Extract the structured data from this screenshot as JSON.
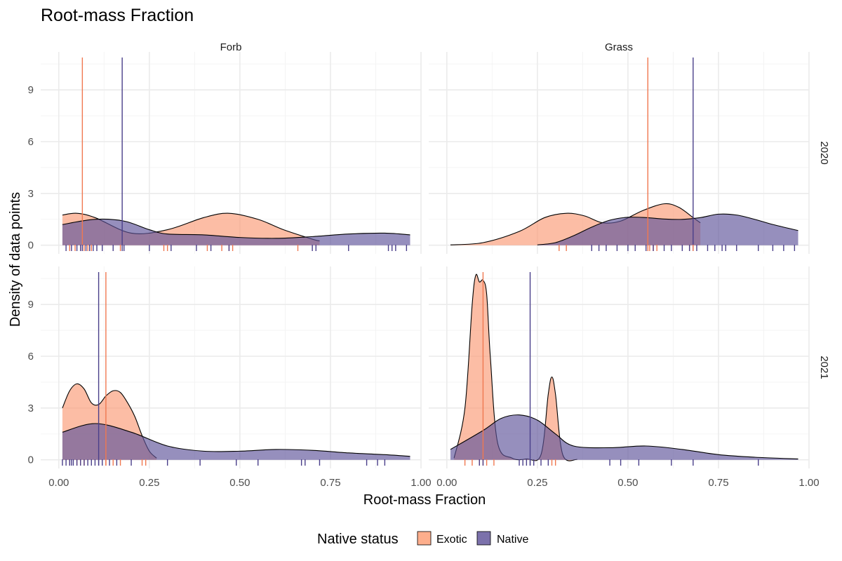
{
  "chart_data": {
    "type": "area",
    "subtype": "density with rug and mean lines, faceted",
    "title": "Root-mass Fraction",
    "xlabel": "Root-mass Fraction",
    "ylabel": "Density of data points",
    "xlim": [
      -0.05,
      1.0
    ],
    "ylim": [
      -0.5,
      11.2
    ],
    "x_ticks": [
      0,
      0.25,
      0.5,
      0.75,
      1.0
    ],
    "x_tick_labels": [
      "0.00",
      "0.25",
      "0.50",
      "0.75",
      "1.00"
    ],
    "y_ticks": [
      0,
      3,
      6,
      9
    ],
    "y_tick_labels": [
      "0",
      "3",
      "6",
      "9"
    ],
    "grid": true,
    "col_facets": [
      "Forb",
      "Grass"
    ],
    "row_facets": [
      "2020",
      "2021"
    ],
    "legend": {
      "title": "Native status",
      "position": "bottom",
      "entries": [
        {
          "label": "Exotic",
          "color": "#fdae8c"
        },
        {
          "label": "Native",
          "color": "#7b71ab"
        }
      ]
    },
    "colors": {
      "Exotic_fill": "#fb9a74",
      "Exotic_line": "#f07850",
      "Native_fill": "#5e5399",
      "Native_line": "#4a3f8a",
      "outline": "#000000"
    },
    "panels": [
      {
        "col": "Forb",
        "row": "2020",
        "series": [
          {
            "name": "Exotic",
            "mean": 0.065,
            "x": [
              0.01,
              0.05,
              0.1,
              0.2,
              0.3,
              0.4,
              0.47,
              0.55,
              0.62,
              0.7,
              0.72
            ],
            "y": [
              1.75,
              1.85,
              1.6,
              0.7,
              0.9,
              1.6,
              1.85,
              1.5,
              0.9,
              0.35,
              0.25
            ]
          },
          {
            "name": "Native",
            "mean": 0.175,
            "x": [
              0.01,
              0.1,
              0.18,
              0.25,
              0.3,
              0.4,
              0.5,
              0.6,
              0.7,
              0.8,
              0.9,
              0.97
            ],
            "y": [
              1.2,
              1.5,
              1.4,
              0.9,
              0.65,
              0.6,
              0.45,
              0.4,
              0.5,
              0.65,
              0.7,
              0.6
            ]
          }
        ],
        "rug": {
          "Exotic": [
            0.03,
            0.045,
            0.06,
            0.07,
            0.08,
            0.09,
            0.17,
            0.29,
            0.3,
            0.41,
            0.45,
            0.47,
            0.48,
            0.66
          ],
          "Native": [
            0.02,
            0.035,
            0.05,
            0.06,
            0.065,
            0.075,
            0.085,
            0.095,
            0.105,
            0.12,
            0.15,
            0.18,
            0.25,
            0.31,
            0.38,
            0.42,
            0.47,
            0.7,
            0.71,
            0.8,
            0.91,
            0.92,
            0.93,
            0.96
          ]
        }
      },
      {
        "col": "Grass",
        "row": "2020",
        "series": [
          {
            "name": "Exotic",
            "mean": 0.555,
            "x": [
              0.01,
              0.1,
              0.2,
              0.27,
              0.33,
              0.38,
              0.43,
              0.48,
              0.54,
              0.6,
              0.64,
              0.68,
              0.7
            ],
            "y": [
              0.02,
              0.15,
              0.8,
              1.6,
              1.85,
              1.7,
              1.3,
              1.4,
              2.0,
              2.4,
              2.2,
              1.6,
              1.3
            ]
          },
          {
            "name": "Native",
            "mean": 0.68,
            "x": [
              0.25,
              0.3,
              0.35,
              0.4,
              0.45,
              0.5,
              0.55,
              0.6,
              0.65,
              0.7,
              0.75,
              0.8,
              0.85,
              0.9,
              0.97
            ],
            "y": [
              0.02,
              0.15,
              0.55,
              1.05,
              1.45,
              1.62,
              1.6,
              1.52,
              1.5,
              1.6,
              1.8,
              1.75,
              1.5,
              1.2,
              0.85
            ]
          }
        ],
        "rug": {
          "Exotic": [
            0.31,
            0.33,
            0.56,
            0.57,
            0.58,
            0.67,
            0.68
          ],
          "Native": [
            0.4,
            0.42,
            0.44,
            0.47,
            0.5,
            0.52,
            0.55,
            0.57,
            0.6,
            0.62,
            0.65,
            0.67,
            0.69,
            0.72,
            0.74,
            0.76,
            0.77,
            0.8,
            0.86,
            0.9,
            0.93,
            0.96
          ]
        }
      },
      {
        "col": "Forb",
        "row": "2021",
        "series": [
          {
            "name": "Exotic",
            "mean": 0.13,
            "x": [
              0.01,
              0.03,
              0.05,
              0.07,
              0.09,
              0.11,
              0.13,
              0.15,
              0.17,
              0.19,
              0.21,
              0.23,
              0.25,
              0.27
            ],
            "y": [
              3.0,
              4.0,
              4.4,
              4.1,
              3.3,
              3.2,
              3.7,
              4.0,
              3.9,
              3.3,
              2.5,
              1.4,
              0.5,
              0.1
            ]
          },
          {
            "name": "Native",
            "mean": 0.11,
            "x": [
              0.01,
              0.1,
              0.2,
              0.3,
              0.4,
              0.5,
              0.6,
              0.7,
              0.8,
              0.9,
              0.97
            ],
            "y": [
              1.6,
              2.1,
              1.6,
              0.8,
              0.5,
              0.5,
              0.6,
              0.55,
              0.4,
              0.3,
              0.2
            ]
          }
        ],
        "rug": {
          "Exotic": [
            0.03,
            0.05,
            0.06,
            0.07,
            0.13,
            0.15,
            0.17,
            0.23,
            0.24
          ],
          "Native": [
            0.01,
            0.02,
            0.03,
            0.035,
            0.04,
            0.05,
            0.06,
            0.07,
            0.08,
            0.09,
            0.1,
            0.11,
            0.12,
            0.14,
            0.16,
            0.2,
            0.3,
            0.39,
            0.49,
            0.55,
            0.67,
            0.68,
            0.72,
            0.85,
            0.88,
            0.9
          ]
        }
      },
      {
        "col": "Grass",
        "row": "2021",
        "series": [
          {
            "name": "Exotic",
            "mean": 0.1,
            "x": [
              0.02,
              0.05,
              0.07,
              0.08,
              0.09,
              0.1,
              0.11,
              0.12,
              0.14,
              0.18,
              0.22,
              0.26,
              0.28,
              0.29,
              0.3,
              0.32,
              0.36
            ],
            "y": [
              0.1,
              3.0,
              9.0,
              10.7,
              10.3,
              10.4,
              9.6,
              6.0,
              1.0,
              0.1,
              0.05,
              0.3,
              3.8,
              4.8,
              3.8,
              0.3,
              0.02
            ]
          },
          {
            "name": "Native",
            "mean": 0.23,
            "x": [
              0.01,
              0.1,
              0.15,
              0.2,
              0.25,
              0.3,
              0.35,
              0.45,
              0.55,
              0.65,
              0.75,
              0.85,
              0.97
            ],
            "y": [
              0.6,
              1.7,
              2.4,
              2.6,
              2.3,
              1.5,
              0.8,
              0.7,
              0.8,
              0.6,
              0.3,
              0.15,
              0.05
            ]
          }
        ],
        "rug": {
          "Exotic": [
            0.05,
            0.07,
            0.09,
            0.11,
            0.13,
            0.29,
            0.3
          ],
          "Native": [
            0.09,
            0.1,
            0.2,
            0.21,
            0.22,
            0.23,
            0.24,
            0.26,
            0.28,
            0.45,
            0.48,
            0.53,
            0.62,
            0.68,
            0.86
          ]
        }
      }
    ]
  }
}
